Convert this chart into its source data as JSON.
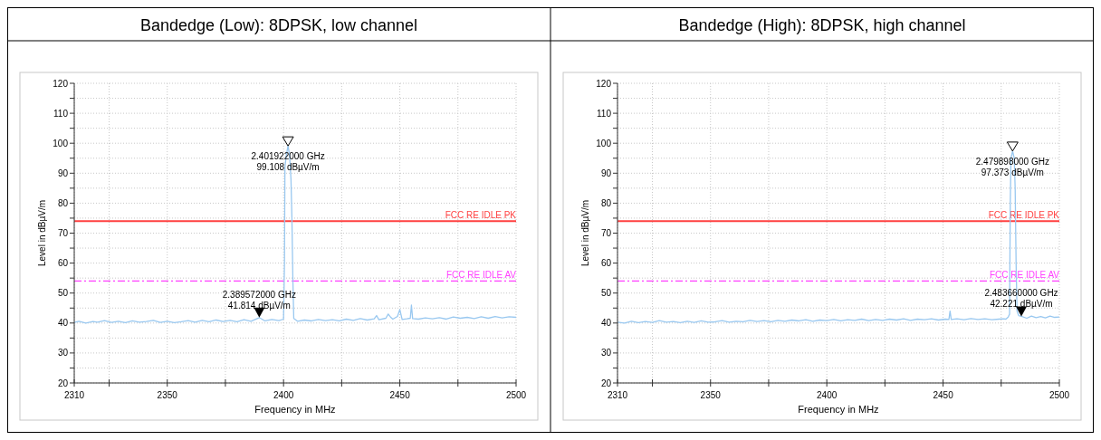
{
  "chart_data": [
    {
      "type": "line",
      "title": "Bandedge (Low): 8DPSK, low channel",
      "xlabel": "Frequency in MHz",
      "ylabel": "Level in dBµV/m",
      "xlim": [
        2310,
        2500
      ],
      "ylim": [
        20,
        120
      ],
      "xticks": [
        2310,
        {
          "value": 2325,
          "label": null
        },
        2350,
        {
          "value": 2375,
          "label": null
        },
        2400,
        {
          "value": 2425,
          "label": null
        },
        2450,
        {
          "value": 2475,
          "label": null
        },
        2500
      ],
      "yticks": [
        20,
        {
          "value": 25,
          "label": null
        },
        30,
        {
          "value": 35,
          "label": null
        },
        40,
        {
          "value": 45,
          "label": null
        },
        50,
        {
          "value": 55,
          "label": null
        },
        60,
        {
          "value": 65,
          "label": null
        },
        70,
        {
          "value": 75,
          "label": null
        },
        80,
        {
          "value": 85,
          "label": null
        },
        90,
        {
          "value": 95,
          "label": null
        },
        100,
        {
          "value": 105,
          "label": null
        },
        110,
        {
          "value": 115,
          "label": null
        },
        120
      ],
      "grid": true,
      "marker": "none",
      "line_style": "solid",
      "series": [
        {
          "color": "#99c8f0",
          "x": [
            2310,
            2312,
            2315,
            2318,
            2320,
            2323,
            2326,
            2329,
            2332,
            2335,
            2338,
            2341,
            2344,
            2347,
            2350,
            2353,
            2356,
            2359,
            2362,
            2365,
            2368,
            2371,
            2374,
            2377,
            2380,
            2383,
            2386,
            2389.572,
            2392,
            2395,
            2398,
            2400,
            2400.4,
            2400.6,
            2401.2,
            2401.922,
            2402.6,
            2403.2,
            2403.6,
            2404,
            2404.4,
            2406,
            2409,
            2412,
            2415,
            2418,
            2421,
            2424,
            2427,
            2430,
            2433,
            2436,
            2439,
            2440,
            2441,
            2444,
            2445,
            2446,
            2447,
            2449,
            2450,
            2451,
            2453,
            2454.5,
            2455,
            2455.5,
            2458,
            2461,
            2464,
            2467,
            2470,
            2473,
            2476,
            2479,
            2482,
            2485,
            2488,
            2491,
            2494,
            2497,
            2500
          ],
          "values": [
            40.2,
            40.6,
            40.0,
            40.5,
            40.3,
            40.8,
            40.2,
            40.6,
            40.1,
            40.7,
            40.3,
            40.5,
            40.9,
            40.2,
            40.6,
            40.1,
            40.4,
            40.8,
            40.3,
            40.9,
            40.4,
            41.0,
            40.5,
            40.9,
            40.4,
            41.1,
            40.6,
            41.814,
            40.7,
            41.2,
            40.8,
            41.3,
            60,
            92,
            96,
            99.108,
            96,
            88,
            75,
            55,
            41.5,
            40.6,
            41.0,
            40.7,
            41.2,
            40.8,
            41.1,
            40.7,
            41.3,
            40.9,
            41.5,
            41.0,
            41.4,
            42.5,
            41.1,
            41.6,
            43.0,
            42.0,
            41.3,
            42.2,
            44.5,
            41.2,
            41.4,
            41.6,
            46.0,
            41.5,
            41.3,
            41.7,
            41.4,
            41.8,
            41.3,
            42.0,
            41.6,
            41.9,
            41.5,
            42.1,
            41.6,
            42.2,
            41.7,
            42.1,
            41.9
          ]
        }
      ],
      "ref_lines": [
        {
          "axis": "y",
          "value": 74,
          "label": "FCC RE IDLE PK",
          "color": "#ff4040",
          "line_style": "solid"
        },
        {
          "axis": "y",
          "value": 54,
          "label": "FCC RE IDLE AV",
          "color": "#ff40ff",
          "line_style": "dashed"
        }
      ],
      "annotations": [
        {
          "text": "2.401922000 GHz\n99.108 dBµV/m",
          "x": 2401.922,
          "y": 99.108
        },
        {
          "text": "2.389572000 GHz\n41.814 dBµV/m",
          "x": 2389.572,
          "y": 41.814
        }
      ]
    },
    {
      "type": "line",
      "title": "Bandedge (High): 8DPSK, high channel",
      "xlabel": "Frequency in MHz",
      "ylabel": "Level in dBµV/m",
      "xlim": [
        2310,
        2500
      ],
      "ylim": [
        20,
        120
      ],
      "xticks": [
        2310,
        {
          "value": 2325,
          "label": null
        },
        2350,
        {
          "value": 2375,
          "label": null
        },
        2400,
        {
          "value": 2425,
          "label": null
        },
        2450,
        {
          "value": 2475,
          "label": null
        },
        2500
      ],
      "yticks": [
        20,
        {
          "value": 25,
          "label": null
        },
        30,
        {
          "value": 35,
          "label": null
        },
        40,
        {
          "value": 45,
          "label": null
        },
        50,
        {
          "value": 55,
          "label": null
        },
        60,
        {
          "value": 65,
          "label": null
        },
        70,
        {
          "value": 75,
          "label": null
        },
        80,
        {
          "value": 85,
          "label": null
        },
        90,
        {
          "value": 95,
          "label": null
        },
        100,
        {
          "value": 105,
          "label": null
        },
        110,
        {
          "value": 115,
          "label": null
        },
        120
      ],
      "grid": true,
      "marker": "none",
      "line_style": "solid",
      "series": [
        {
          "color": "#99c8f0",
          "x": [
            2310,
            2313,
            2316,
            2319,
            2322,
            2325,
            2328,
            2331,
            2334,
            2337,
            2340,
            2343,
            2346,
            2349,
            2352,
            2355,
            2358,
            2361,
            2364,
            2367,
            2370,
            2373,
            2376,
            2379,
            2382,
            2385,
            2388,
            2391,
            2394,
            2397,
            2400,
            2403,
            2406,
            2409,
            2412,
            2415,
            2418,
            2421,
            2424,
            2427,
            2430,
            2433,
            2436,
            2439,
            2442,
            2445,
            2448,
            2451,
            2452.5,
            2453,
            2453.5,
            2456,
            2459,
            2462,
            2465,
            2468,
            2471,
            2474,
            2476,
            2477,
            2478,
            2478.6,
            2478.9,
            2479.2,
            2479.898,
            2480.6,
            2481,
            2481.4,
            2481.8,
            2482.5,
            2483.66,
            2486,
            2488,
            2490,
            2492,
            2494,
            2496,
            2498,
            2500
          ],
          "values": [
            40.3,
            40.0,
            40.6,
            40.1,
            40.5,
            40.2,
            40.8,
            40.3,
            40.5,
            40.1,
            40.6,
            40.2,
            40.7,
            40.3,
            40.4,
            40.8,
            40.3,
            40.6,
            40.4,
            40.9,
            40.5,
            40.8,
            40.4,
            40.9,
            40.6,
            41.0,
            40.7,
            41.1,
            40.6,
            41.0,
            40.8,
            41.2,
            40.7,
            41.1,
            40.9,
            41.3,
            40.8,
            41.2,
            40.9,
            41.3,
            41.0,
            41.4,
            40.9,
            41.3,
            41.1,
            41.4,
            41.0,
            41.3,
            41.2,
            44.0,
            41.2,
            41.4,
            41.1,
            41.5,
            41.2,
            41.4,
            41.1,
            41.3,
            41.4,
            41.3,
            42.0,
            43.0,
            80,
            95,
            97.373,
            95,
            85,
            60,
            44,
            42.5,
            42.221,
            41.6,
            42.3,
            41.8,
            42.2,
            41.7,
            42.3,
            41.9,
            42.0
          ]
        }
      ],
      "ref_lines": [
        {
          "axis": "y",
          "value": 74,
          "label": "FCC RE IDLE PK",
          "color": "#ff4040",
          "line_style": "solid"
        },
        {
          "axis": "y",
          "value": 54,
          "label": "FCC RE IDLE AV",
          "color": "#ff40ff",
          "line_style": "dashed"
        }
      ],
      "annotations": [
        {
          "text": "2.479898000 GHz\n97.373 dBµV/m",
          "x": 2479.898,
          "y": 97.373
        },
        {
          "text": "2.483660000 GHz\n42.221 dBµV/m",
          "x": 2483.66,
          "y": 42.221
        }
      ]
    }
  ]
}
